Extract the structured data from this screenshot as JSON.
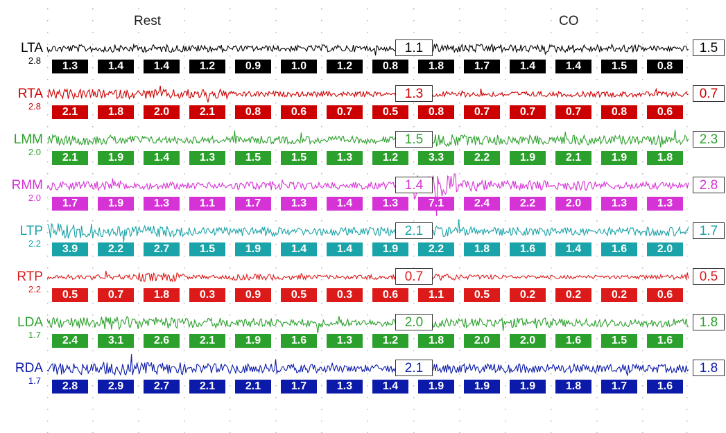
{
  "chart_data": {
    "type": "line",
    "phases": [
      "Rest",
      "CO"
    ],
    "grid": true,
    "channels": [
      {
        "name": "LTA",
        "scale": "2.8",
        "color": "#000000",
        "cells": [
          1.3,
          1.4,
          1.4,
          1.2,
          0.9,
          1.0,
          1.2,
          0.8,
          1.8,
          1.7,
          1.4,
          1.4,
          1.5,
          0.8
        ],
        "rest_value": "1.1",
        "co_value": "1.5"
      },
      {
        "name": "RTA",
        "scale": "2.8",
        "color": "#cc0000",
        "cells": [
          2.1,
          1.8,
          2.0,
          2.1,
          0.8,
          0.6,
          0.7,
          0.5,
          0.8,
          0.7,
          0.7,
          0.7,
          0.8,
          0.6
        ],
        "rest_value": "1.3",
        "co_value": "0.7"
      },
      {
        "name": "LMM",
        "scale": "2.0",
        "color": "#2ca02c",
        "cells": [
          2.1,
          1.9,
          1.4,
          1.3,
          1.5,
          1.5,
          1.3,
          1.2,
          3.3,
          2.2,
          1.9,
          2.1,
          1.9,
          1.8
        ],
        "rest_value": "1.5",
        "co_value": "2.3"
      },
      {
        "name": "RMM",
        "scale": "2.0",
        "color": "#d633d6",
        "cells": [
          1.7,
          1.9,
          1.3,
          1.1,
          1.7,
          1.3,
          1.4,
          1.3,
          7.1,
          2.4,
          2.2,
          2.0,
          1.3,
          1.3
        ],
        "rest_value": "1.4",
        "co_value": "2.8"
      },
      {
        "name": "LTP",
        "scale": "2.2",
        "color": "#1aa3a8",
        "cells": [
          3.9,
          2.2,
          2.7,
          1.5,
          1.9,
          1.4,
          1.4,
          1.9,
          2.2,
          1.8,
          1.6,
          1.4,
          1.6,
          2.0
        ],
        "rest_value": "2.1",
        "co_value": "1.7"
      },
      {
        "name": "RTP",
        "scale": "2.2",
        "color": "#dd1a1a",
        "cells": [
          0.5,
          0.7,
          1.8,
          0.3,
          0.9,
          0.5,
          0.3,
          0.6,
          1.1,
          0.5,
          0.2,
          0.2,
          0.2,
          0.6
        ],
        "rest_value": "0.7",
        "co_value": "0.5"
      },
      {
        "name": "LDA",
        "scale": "1.7",
        "color": "#2ca02c",
        "cells": [
          2.4,
          3.1,
          2.6,
          2.1,
          1.9,
          1.6,
          1.3,
          1.2,
          1.8,
          2.0,
          2.0,
          1.6,
          1.5,
          1.6
        ],
        "rest_value": "2.0",
        "co_value": "1.8"
      },
      {
        "name": "RDA",
        "scale": "1.7",
        "color": "#0b1aa8",
        "cells": [
          2.8,
          2.9,
          2.7,
          2.1,
          2.1,
          1.7,
          1.3,
          1.4,
          1.9,
          1.9,
          1.9,
          1.8,
          1.7,
          1.6
        ],
        "rest_value": "2.1",
        "co_value": "1.8"
      }
    ]
  }
}
